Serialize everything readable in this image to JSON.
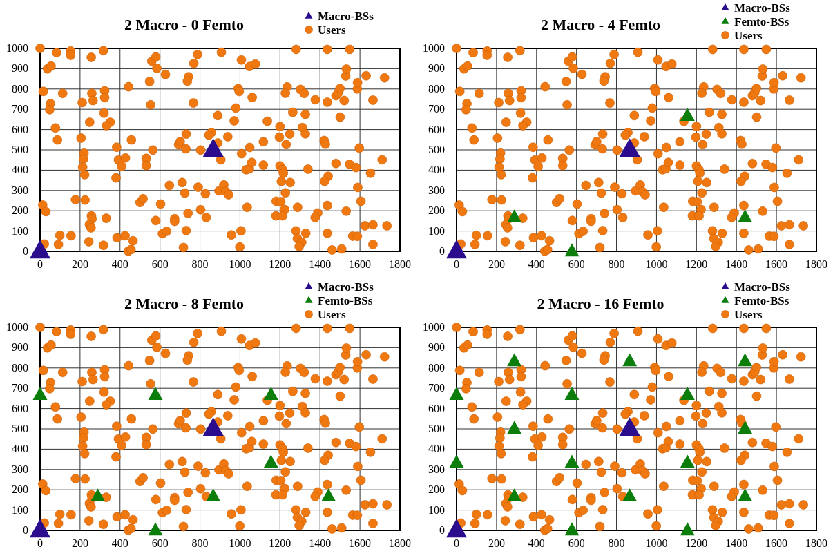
{
  "chart_data": [
    {
      "type": "scatter",
      "title": "2 Macro - 0 Femto",
      "xlim": [
        0,
        1800
      ],
      "ylim": [
        0,
        1000
      ],
      "xticks": [
        0,
        200,
        400,
        600,
        800,
        1000,
        1200,
        1400,
        1600,
        1800
      ],
      "yticks": [
        0,
        100,
        200,
        300,
        400,
        500,
        600,
        700,
        800,
        900,
        1000
      ],
      "grid": true,
      "legend": "top right",
      "series": [
        {
          "name": "Macro-BSs",
          "color": "#2a0c8c",
          "marker": "triangle",
          "x": [
            0,
            866
          ],
          "values": [
            0,
            500
          ]
        },
        {
          "name": "Users",
          "color": "#f07810",
          "marker": "circle",
          "x": [
            0,
            83,
            153,
            153,
            256,
            317,
            37,
            55,
            16,
            52,
            48,
            113,
            77,
            87,
            259,
            265,
            211,
            323,
            323,
            320,
            351,
            332,
            248,
            205,
            220,
            217,
            213,
            223,
            177,
            225,
            257,
            260,
            247,
            255,
            331,
            244,
            317,
            21,
            13,
            29,
            99,
            155,
            92,
            383,
            392,
            427,
            408,
            443,
            380,
            457,
            385,
            425,
            441,
            455,
            465,
            500,
            515,
            531,
            531,
            564,
            553,
            548,
            559,
            579,
            584,
            627,
            579,
            603,
            612,
            633,
            647,
            673,
            673,
            717,
            731,
            711,
            724,
            740,
            693,
            701,
            731,
            729,
            743,
            737,
            769,
            788,
            767,
            803,
            791,
            803,
            827,
            831,
            857,
            844,
            889,
            907,
            889,
            939,
            904,
            895,
            919,
            929,
            943,
            957,
            999,
            1005,
            991,
            996,
            979,
            971,
            1007,
            1048,
            1077,
            1061,
            1008,
            1049,
            1031,
            1047,
            1059,
            1036,
            1117,
            1117,
            1137,
            1200,
            1197,
            1231,
            1249,
            1236,
            1227,
            1264,
            1200,
            1213,
            1217,
            1207,
            1251,
            1227,
            1181,
            1204,
            1223,
            1180,
            1213,
            1281,
            1303,
            1321,
            1327,
            1312,
            1327,
            1340,
            1288,
            1280,
            1287,
            1309,
            1296,
            1329,
            1377,
            1437,
            1437,
            1480,
            1491,
            1500,
            1521,
            1529,
            1532,
            1549,
            1501,
            1587,
            1588,
            1631,
            1723,
            1665,
            1421,
            1427,
            1441,
            1423,
            1480,
            1548,
            1580,
            1597,
            1711,
            1653,
            1589,
            1605,
            1437,
            1389,
            1376,
            1531,
            1437,
            1461,
            1509,
            1564,
            1587,
            1625,
            1665,
            1735,
            1665
          ],
          "values": [
            1000,
            979,
            987,
            966,
            956,
            989,
            899,
            913,
            788,
            728,
            698,
            778,
            608,
            549,
            778,
            743,
            733,
            791,
            757,
            681,
            636,
            619,
            636,
            558,
            484,
            455,
            415,
            378,
            255,
            253,
            175,
            160,
            132,
            116,
            163,
            48,
            30,
            36,
            228,
            196,
            79,
            77,
            34,
            513,
            450,
            460,
            419,
            811,
            362,
            549,
            67,
            77,
            1,
            9,
            52,
            241,
            259,
            458,
            423,
            499,
            722,
            837,
            937,
            958,
            902,
            872,
            152,
            233,
            87,
            99,
            325,
            161,
            148,
            19,
            102,
            339,
            287,
            187,
            525,
            541,
            578,
            505,
            860,
            839,
            926,
            970,
            731,
            499,
            316,
            205,
            284,
            167,
            585,
            573,
            534,
            981,
            669,
            565,
            451,
            298,
            327,
            295,
            279,
            81,
            22,
            101,
            802,
            788,
            706,
            643,
            943,
            911,
            923,
            758,
            481,
            512,
            402,
            407,
            438,
            217,
            540,
            425,
            641,
            615,
            563,
            526,
            578,
            810,
            779,
            685,
            421,
            402,
            385,
            345,
            339,
            288,
            247,
            245,
            206,
            175,
            175,
            995,
            798,
            778,
            675,
            610,
            579,
            405,
            217,
            101,
            63,
            45,
            24,
            89,
            747,
            995,
            735,
            767,
            780,
            802,
            743,
            864,
            898,
            995,
            661,
            800,
            831,
            865,
            855,
            745,
            546,
            528,
            370,
            345,
            433,
            429,
            413,
            509,
            451,
            385,
            315,
            247,
            226,
            189,
            167,
            198,
            89,
            7,
            12,
            75,
            74,
            126,
            131,
            126,
            34
          ]
        }
      ]
    },
    {
      "type": "scatter",
      "title": "2 Macro - 4 Femto",
      "xlim": [
        0,
        1800
      ],
      "ylim": [
        0,
        1000
      ],
      "xticks": [
        0,
        200,
        400,
        600,
        800,
        1000,
        1200,
        1400,
        1600,
        1800
      ],
      "yticks": [
        0,
        100,
        200,
        300,
        400,
        500,
        600,
        700,
        800,
        900,
        1000
      ],
      "grid": true,
      "legend": "top right",
      "series": [
        {
          "name": "Macro-BSs",
          "color": "#2a0c8c",
          "marker": "triangle",
          "x": [
            0,
            866
          ],
          "values": [
            0,
            500
          ]
        },
        {
          "name": "Femto-BSs",
          "color": "#0a7d0a",
          "marker": "triangle",
          "x": [
            1155,
            289,
            577,
            1443
          ],
          "values": [
            667,
            167,
            0,
            167
          ]
        },
        {
          "name": "Users",
          "color": "#f07810",
          "marker": "circle",
          "x": [
            0,
            83,
            153,
            153,
            256,
            317,
            37,
            55,
            16,
            52,
            48,
            113,
            77,
            87,
            259,
            265,
            211,
            323,
            323,
            320,
            351,
            332,
            248,
            205,
            220,
            217,
            213,
            223,
            177,
            225,
            257,
            260,
            247,
            255,
            331,
            244,
            317,
            21,
            13,
            29,
            99,
            155,
            92,
            383,
            392,
            427,
            408,
            443,
            380,
            457,
            385,
            425,
            441,
            455,
            465,
            500,
            515,
            531,
            531,
            564,
            553,
            548,
            559,
            579,
            584,
            627,
            579,
            603,
            612,
            633,
            647,
            673,
            673,
            717,
            731,
            711,
            724,
            740,
            693,
            701,
            731,
            729,
            743,
            737,
            769,
            788,
            767,
            803,
            791,
            803,
            827,
            831,
            857,
            844,
            889,
            907,
            889,
            939,
            904,
            895,
            919,
            929,
            943,
            957,
            999,
            1005,
            991,
            996,
            979,
            971,
            1007,
            1048,
            1077,
            1061,
            1008,
            1049,
            1031,
            1047,
            1059,
            1036,
            1117,
            1117,
            1137,
            1200,
            1197,
            1231,
            1249,
            1236,
            1227,
            1264,
            1200,
            1213,
            1217,
            1207,
            1251,
            1227,
            1181,
            1204,
            1223,
            1180,
            1213,
            1281,
            1303,
            1321,
            1327,
            1312,
            1327,
            1340,
            1288,
            1280,
            1287,
            1309,
            1296,
            1329,
            1377,
            1437,
            1437,
            1480,
            1491,
            1500,
            1521,
            1529,
            1532,
            1549,
            1501,
            1587,
            1588,
            1631,
            1723,
            1665,
            1421,
            1427,
            1441,
            1423,
            1480,
            1548,
            1580,
            1597,
            1711,
            1653,
            1589,
            1605,
            1437,
            1389,
            1376,
            1531,
            1437,
            1461,
            1509,
            1564,
            1587,
            1625,
            1665,
            1735,
            1665
          ],
          "values": [
            1000,
            979,
            987,
            966,
            956,
            989,
            899,
            913,
            788,
            728,
            698,
            778,
            608,
            549,
            778,
            743,
            733,
            791,
            757,
            681,
            636,
            619,
            636,
            558,
            484,
            455,
            415,
            378,
            255,
            253,
            175,
            160,
            132,
            116,
            163,
            48,
            30,
            36,
            228,
            196,
            79,
            77,
            34,
            513,
            450,
            460,
            419,
            811,
            362,
            549,
            67,
            77,
            1,
            9,
            52,
            241,
            259,
            458,
            423,
            499,
            722,
            837,
            937,
            958,
            902,
            872,
            152,
            233,
            87,
            99,
            325,
            161,
            148,
            19,
            102,
            339,
            287,
            187,
            525,
            541,
            578,
            505,
            860,
            839,
            926,
            970,
            731,
            499,
            316,
            205,
            284,
            167,
            585,
            573,
            534,
            981,
            669,
            565,
            451,
            298,
            327,
            295,
            279,
            81,
            22,
            101,
            802,
            788,
            706,
            643,
            943,
            911,
            923,
            758,
            481,
            512,
            402,
            407,
            438,
            217,
            540,
            425,
            641,
            615,
            563,
            526,
            578,
            810,
            779,
            685,
            421,
            402,
            385,
            345,
            339,
            288,
            247,
            245,
            206,
            175,
            175,
            995,
            798,
            778,
            675,
            610,
            579,
            405,
            217,
            101,
            63,
            45,
            24,
            89,
            747,
            995,
            735,
            767,
            780,
            802,
            743,
            864,
            898,
            995,
            661,
            800,
            831,
            865,
            855,
            745,
            546,
            528,
            370,
            345,
            433,
            429,
            413,
            509,
            451,
            385,
            315,
            247,
            226,
            189,
            167,
            198,
            89,
            7,
            12,
            75,
            74,
            126,
            131,
            126,
            34
          ]
        }
      ]
    },
    {
      "type": "scatter",
      "title": "2 Macro - 8 Femto",
      "xlim": [
        0,
        1800
      ],
      "ylim": [
        0,
        1000
      ],
      "xticks": [
        0,
        200,
        400,
        600,
        800,
        1000,
        1200,
        1400,
        1600,
        1800
      ],
      "yticks": [
        0,
        100,
        200,
        300,
        400,
        500,
        600,
        700,
        800,
        900,
        1000
      ],
      "grid": true,
      "legend": "top right",
      "series": [
        {
          "name": "Macro-BSs",
          "color": "#2a0c8c",
          "marker": "triangle",
          "x": [
            0,
            866
          ],
          "values": [
            0,
            500
          ]
        },
        {
          "name": "Femto-BSs",
          "color": "#0a7d0a",
          "marker": "triangle",
          "x": [
            0,
            577,
            1155,
            1155,
            289,
            866,
            1443,
            577
          ],
          "values": [
            667,
            667,
            667,
            333,
            167,
            167,
            167,
            0
          ]
        },
        {
          "name": "Users",
          "color": "#f07810",
          "marker": "circle",
          "x": [
            0,
            83,
            153,
            153,
            256,
            317,
            37,
            55,
            16,
            52,
            48,
            113,
            77,
            87,
            259,
            265,
            211,
            323,
            323,
            320,
            351,
            332,
            248,
            205,
            220,
            217,
            213,
            223,
            177,
            225,
            257,
            260,
            247,
            255,
            331,
            244,
            317,
            21,
            13,
            29,
            99,
            155,
            92,
            383,
            392,
            427,
            408,
            443,
            380,
            457,
            385,
            425,
            441,
            455,
            465,
            500,
            515,
            531,
            531,
            564,
            553,
            548,
            559,
            579,
            584,
            627,
            579,
            603,
            612,
            633,
            647,
            673,
            673,
            717,
            731,
            711,
            724,
            740,
            693,
            701,
            731,
            729,
            743,
            737,
            769,
            788,
            767,
            803,
            791,
            803,
            827,
            831,
            857,
            844,
            889,
            907,
            889,
            939,
            904,
            895,
            919,
            929,
            943,
            957,
            999,
            1005,
            991,
            996,
            979,
            971,
            1007,
            1048,
            1077,
            1061,
            1008,
            1049,
            1031,
            1047,
            1059,
            1036,
            1117,
            1117,
            1137,
            1200,
            1197,
            1231,
            1249,
            1236,
            1227,
            1264,
            1200,
            1213,
            1217,
            1207,
            1251,
            1227,
            1181,
            1204,
            1223,
            1180,
            1213,
            1281,
            1303,
            1321,
            1327,
            1312,
            1327,
            1340,
            1288,
            1280,
            1287,
            1309,
            1296,
            1329,
            1377,
            1437,
            1437,
            1480,
            1491,
            1500,
            1521,
            1529,
            1532,
            1549,
            1501,
            1587,
            1588,
            1631,
            1723,
            1665,
            1421,
            1427,
            1441,
            1423,
            1480,
            1548,
            1580,
            1597,
            1711,
            1653,
            1589,
            1605,
            1437,
            1389,
            1376,
            1531,
            1437,
            1461,
            1509,
            1564,
            1587,
            1625,
            1665,
            1735,
            1665
          ],
          "values": [
            1000,
            979,
            987,
            966,
            956,
            989,
            899,
            913,
            788,
            728,
            698,
            778,
            608,
            549,
            778,
            743,
            733,
            791,
            757,
            681,
            636,
            619,
            636,
            558,
            484,
            455,
            415,
            378,
            255,
            253,
            175,
            160,
            132,
            116,
            163,
            48,
            30,
            36,
            228,
            196,
            79,
            77,
            34,
            513,
            450,
            460,
            419,
            811,
            362,
            549,
            67,
            77,
            1,
            9,
            52,
            241,
            259,
            458,
            423,
            499,
            722,
            837,
            937,
            958,
            902,
            872,
            152,
            233,
            87,
            99,
            325,
            161,
            148,
            19,
            102,
            339,
            287,
            187,
            525,
            541,
            578,
            505,
            860,
            839,
            926,
            970,
            731,
            499,
            316,
            205,
            284,
            167,
            585,
            573,
            534,
            981,
            669,
            565,
            451,
            298,
            327,
            295,
            279,
            81,
            22,
            101,
            802,
            788,
            706,
            643,
            943,
            911,
            923,
            758,
            481,
            512,
            402,
            407,
            438,
            217,
            540,
            425,
            641,
            615,
            563,
            526,
            578,
            810,
            779,
            685,
            421,
            402,
            385,
            345,
            339,
            288,
            247,
            245,
            206,
            175,
            175,
            995,
            798,
            778,
            675,
            610,
            579,
            405,
            217,
            101,
            63,
            45,
            24,
            89,
            747,
            995,
            735,
            767,
            780,
            802,
            743,
            864,
            898,
            995,
            661,
            800,
            831,
            865,
            855,
            745,
            546,
            528,
            370,
            345,
            433,
            429,
            413,
            509,
            451,
            385,
            315,
            247,
            226,
            189,
            167,
            198,
            89,
            7,
            12,
            75,
            74,
            126,
            131,
            126,
            34
          ]
        }
      ]
    },
    {
      "type": "scatter",
      "title": "2 Macro - 16 Femto",
      "xlim": [
        0,
        1800
      ],
      "ylim": [
        0,
        1000
      ],
      "xticks": [
        0,
        200,
        400,
        600,
        800,
        1000,
        1200,
        1400,
        1600,
        1800
      ],
      "yticks": [
        0,
        100,
        200,
        300,
        400,
        500,
        600,
        700,
        800,
        900,
        1000
      ],
      "grid": true,
      "legend": "top right",
      "series": [
        {
          "name": "Macro-BSs",
          "color": "#2a0c8c",
          "marker": "triangle",
          "x": [
            0,
            866
          ],
          "values": [
            0,
            500
          ]
        },
        {
          "name": "Femto-BSs",
          "color": "#0a7d0a",
          "marker": "triangle",
          "x": [
            0,
            0,
            289,
            289,
            289,
            577,
            577,
            577,
            866,
            866,
            1155,
            1155,
            1155,
            1443,
            1443,
            1443
          ],
          "values": [
            667,
            333,
            833,
            500,
            167,
            667,
            333,
            0,
            833,
            167,
            667,
            333,
            0,
            833,
            500,
            167
          ]
        },
        {
          "name": "Users",
          "color": "#f07810",
          "marker": "circle",
          "x": [
            0,
            83,
            153,
            153,
            256,
            317,
            37,
            55,
            16,
            52,
            48,
            113,
            77,
            87,
            259,
            265,
            211,
            323,
            323,
            320,
            351,
            332,
            248,
            205,
            220,
            217,
            213,
            223,
            177,
            225,
            257,
            260,
            247,
            255,
            331,
            244,
            317,
            21,
            13,
            29,
            99,
            155,
            92,
            383,
            392,
            427,
            408,
            443,
            380,
            457,
            385,
            425,
            441,
            455,
            465,
            500,
            515,
            531,
            531,
            564,
            553,
            548,
            559,
            579,
            584,
            627,
            579,
            603,
            612,
            633,
            647,
            673,
            673,
            717,
            731,
            711,
            724,
            740,
            693,
            701,
            731,
            729,
            743,
            737,
            769,
            788,
            767,
            803,
            791,
            803,
            827,
            831,
            857,
            844,
            889,
            907,
            889,
            939,
            904,
            895,
            919,
            929,
            943,
            957,
            999,
            1005,
            991,
            996,
            979,
            971,
            1007,
            1048,
            1077,
            1061,
            1008,
            1049,
            1031,
            1047,
            1059,
            1036,
            1117,
            1117,
            1137,
            1200,
            1197,
            1231,
            1249,
            1236,
            1227,
            1264,
            1200,
            1213,
            1217,
            1207,
            1251,
            1227,
            1181,
            1204,
            1223,
            1180,
            1213,
            1281,
            1303,
            1321,
            1327,
            1312,
            1327,
            1340,
            1288,
            1280,
            1287,
            1309,
            1296,
            1329,
            1377,
            1437,
            1437,
            1480,
            1491,
            1500,
            1521,
            1529,
            1532,
            1549,
            1501,
            1587,
            1588,
            1631,
            1723,
            1665,
            1421,
            1427,
            1441,
            1423,
            1480,
            1548,
            1580,
            1597,
            1711,
            1653,
            1589,
            1605,
            1437,
            1389,
            1376,
            1531,
            1437,
            1461,
            1509,
            1564,
            1587,
            1625,
            1665,
            1735,
            1665
          ],
          "values": [
            1000,
            979,
            987,
            966,
            956,
            989,
            899,
            913,
            788,
            728,
            698,
            778,
            608,
            549,
            778,
            743,
            733,
            791,
            757,
            681,
            636,
            619,
            636,
            558,
            484,
            455,
            415,
            378,
            255,
            253,
            175,
            160,
            132,
            116,
            163,
            48,
            30,
            36,
            228,
            196,
            79,
            77,
            34,
            513,
            450,
            460,
            419,
            811,
            362,
            549,
            67,
            77,
            1,
            9,
            52,
            241,
            259,
            458,
            423,
            499,
            722,
            837,
            937,
            958,
            902,
            872,
            152,
            233,
            87,
            99,
            325,
            161,
            148,
            19,
            102,
            339,
            287,
            187,
            525,
            541,
            578,
            505,
            860,
            839,
            926,
            970,
            731,
            499,
            316,
            205,
            284,
            167,
            585,
            573,
            534,
            981,
            669,
            565,
            451,
            298,
            327,
            295,
            279,
            81,
            22,
            101,
            802,
            788,
            706,
            643,
            943,
            911,
            923,
            758,
            481,
            512,
            402,
            407,
            438,
            217,
            540,
            425,
            641,
            615,
            563,
            526,
            578,
            810,
            779,
            685,
            421,
            402,
            385,
            345,
            339,
            288,
            247,
            245,
            206,
            175,
            175,
            995,
            798,
            778,
            675,
            610,
            579,
            405,
            217,
            101,
            63,
            45,
            24,
            89,
            747,
            995,
            735,
            767,
            780,
            802,
            743,
            864,
            898,
            995,
            661,
            800,
            831,
            865,
            855,
            745,
            546,
            528,
            370,
            345,
            433,
            429,
            413,
            509,
            451,
            385,
            315,
            247,
            226,
            189,
            167,
            198,
            89,
            7,
            12,
            75,
            74,
            126,
            131,
            126,
            34
          ]
        }
      ]
    }
  ]
}
